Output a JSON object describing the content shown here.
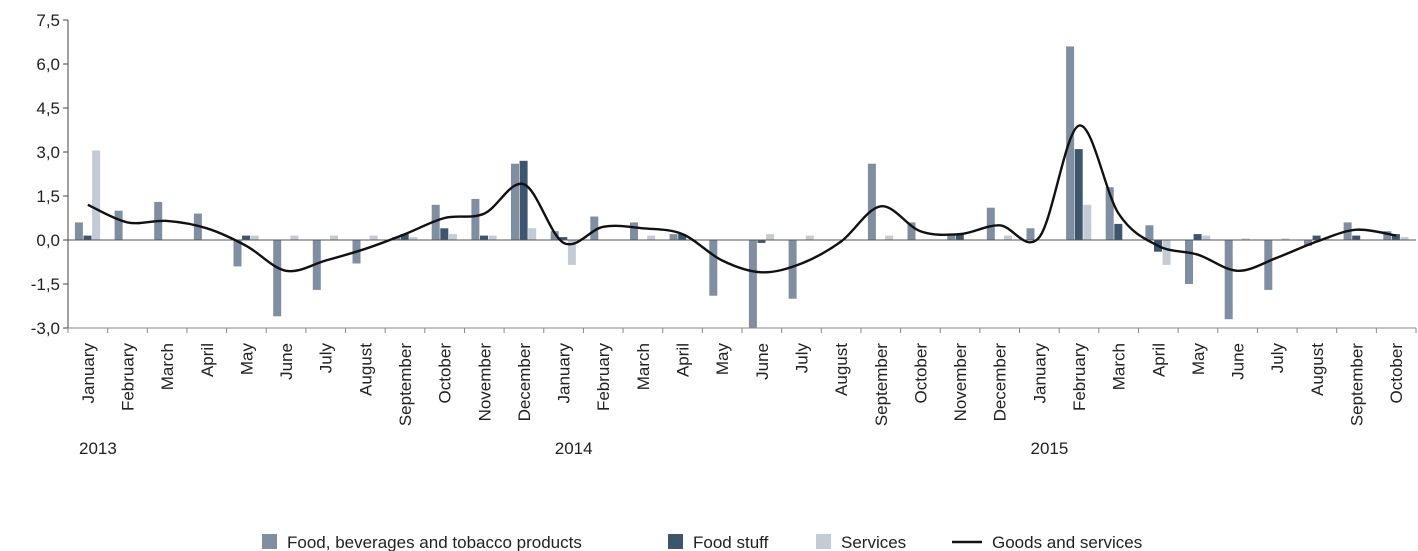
{
  "chart_data": {
    "type": "bar",
    "title": "",
    "xlabel": "",
    "ylabel": "",
    "ylim": [
      -3.0,
      7.5
    ],
    "y_ticks": [
      -3.0,
      -1.5,
      0.0,
      1.5,
      3.0,
      4.5,
      6.0,
      7.5
    ],
    "y_tick_labels": [
      "-3,0",
      "-1,5",
      "0,0",
      "1,5",
      "3,0",
      "4,5",
      "6,0",
      "7,5"
    ],
    "grid": false,
    "legend_position": "bottom",
    "categories": [
      "January",
      "February",
      "March",
      "April",
      "May",
      "June",
      "July",
      "August",
      "September",
      "October",
      "November",
      "December",
      "January",
      "February",
      "March",
      "April",
      "May",
      "June",
      "July",
      "August",
      "September",
      "October",
      "November",
      "December",
      "January",
      "February",
      "March",
      "April",
      "May",
      "June",
      "July",
      "August",
      "September",
      "October"
    ],
    "year_labels": [
      {
        "year": "2013",
        "category_index": 0
      },
      {
        "year": "2014",
        "category_index": 12
      },
      {
        "year": "2015",
        "category_index": 24
      }
    ],
    "series": [
      {
        "name": "Food, beverages and tobacco products",
        "kind": "bar",
        "color": "#7f8fa1",
        "values": [
          0.6,
          1.0,
          1.3,
          0.9,
          -0.9,
          -2.6,
          -1.7,
          -0.8,
          0.1,
          1.2,
          1.4,
          2.6,
          0.3,
          0.8,
          0.6,
          0.2,
          -1.9,
          -3.0,
          -2.0,
          0.0,
          2.6,
          0.6,
          0.2,
          1.1,
          0.4,
          6.6,
          1.8,
          0.5,
          -1.5,
          -2.7,
          -1.7,
          -0.2,
          0.6,
          0.3
        ]
      },
      {
        "name": "Food stuff",
        "kind": "bar",
        "color": "#3d566e",
        "values": [
          0.15,
          0.0,
          0.0,
          0.0,
          0.15,
          0.0,
          0.0,
          0.0,
          0.2,
          0.4,
          0.15,
          2.7,
          0.1,
          0.0,
          0.0,
          0.2,
          0.0,
          -0.1,
          0.0,
          0.0,
          0.0,
          0.0,
          0.2,
          0.0,
          0.0,
          3.1,
          0.55,
          -0.4,
          0.2,
          0.0,
          0.0,
          0.15,
          0.15,
          0.2
        ]
      },
      {
        "name": "Services",
        "kind": "bar",
        "color": "#c3cbd5",
        "values": [
          3.05,
          0.0,
          0.0,
          0.0,
          0.15,
          0.15,
          0.15,
          0.15,
          0.1,
          0.2,
          0.15,
          0.4,
          -0.85,
          0.0,
          0.15,
          0.0,
          0.0,
          0.2,
          0.15,
          0.0,
          0.15,
          0.0,
          0.0,
          0.15,
          0.0,
          1.2,
          0.0,
          -0.85,
          0.15,
          0.05,
          0.05,
          0.05,
          0.0,
          0.1
        ]
      },
      {
        "name": "Goods and services",
        "kind": "line",
        "color": "#111111",
        "values": [
          1.2,
          0.6,
          0.65,
          0.4,
          -0.2,
          -1.05,
          -0.7,
          -0.3,
          0.2,
          0.75,
          0.9,
          1.9,
          -0.1,
          0.45,
          0.4,
          0.2,
          -0.7,
          -1.1,
          -0.8,
          -0.05,
          1.15,
          0.3,
          0.2,
          0.5,
          0.1,
          3.9,
          0.9,
          -0.2,
          -0.5,
          -1.05,
          -0.6,
          -0.05,
          0.35,
          0.15
        ]
      }
    ]
  }
}
